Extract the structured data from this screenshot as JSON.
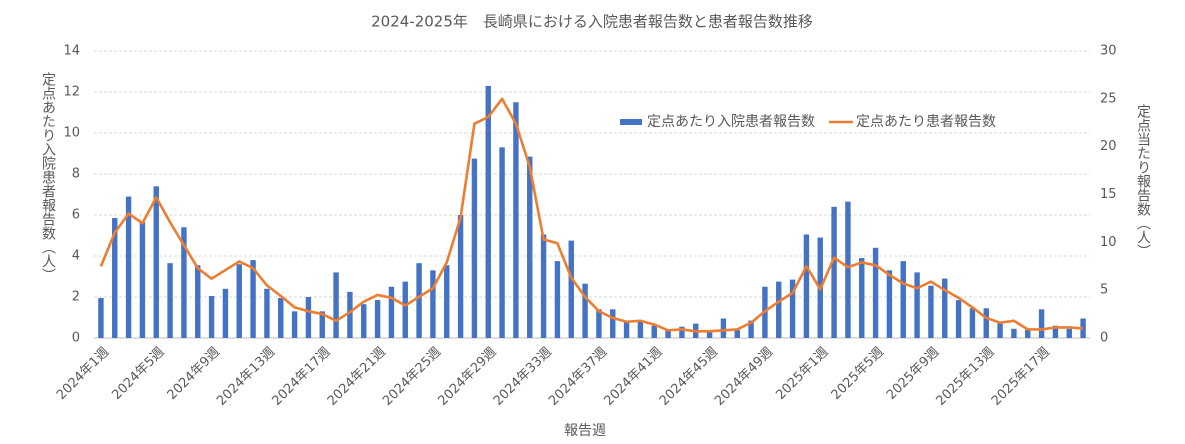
{
  "chart_data": {
    "type": "bar-line",
    "title": "2024-2025年　長崎県における入院患者報告数と患者報告数推移",
    "x_label": "報告週",
    "y_label": "定点あたり入院患者報告数（人）",
    "y2_label": "定点当たり報告数（人）",
    "categories": [
      "2024年1週",
      null,
      null,
      null,
      "2024年5週",
      null,
      null,
      null,
      "2024年9週",
      null,
      null,
      null,
      "2024年13週",
      null,
      null,
      null,
      "2024年17週",
      null,
      null,
      null,
      "2024年21週",
      null,
      null,
      null,
      "2024年25週",
      null,
      null,
      null,
      "2024年29週",
      null,
      null,
      null,
      "2024年33週",
      null,
      null,
      null,
      "2024年37週",
      null,
      null,
      null,
      "2024年41週",
      null,
      null,
      null,
      "2024年45週",
      null,
      null,
      null,
      "2024年49週",
      null,
      null,
      null,
      "2025年1週",
      null,
      null,
      null,
      "2025年5週",
      null,
      null,
      null,
      "2025年9週",
      null,
      null,
      null,
      "2025年13週",
      null,
      null,
      null,
      "2025年17週",
      null,
      null,
      null
    ],
    "series": [
      {
        "name": "定点あたり入院患者報告数",
        "color": "#4472c4",
        "axis": "y",
        "values": [
          1.95,
          5.85,
          6.9,
          5.65,
          7.4,
          3.65,
          5.4,
          3.55,
          2.05,
          2.4,
          3.6,
          3.8,
          2.4,
          1.95,
          1.3,
          2.0,
          1.3,
          3.2,
          2.25,
          1.65,
          1.85,
          2.5,
          2.75,
          3.65,
          3.3,
          3.55,
          6.0,
          8.75,
          12.3,
          9.3,
          11.5,
          8.85,
          5.05,
          3.75,
          4.75,
          2.65,
          1.4,
          1.4,
          0.8,
          0.85,
          0.6,
          0.4,
          0.55,
          0.7,
          0.35,
          0.95,
          0.4,
          0.85,
          2.5,
          2.75,
          2.85,
          5.05,
          4.9,
          6.4,
          6.65,
          3.9,
          4.4,
          3.3,
          3.75,
          3.2,
          2.55,
          2.9,
          1.85,
          1.45,
          1.45,
          0.75,
          0.45,
          0.4,
          1.4,
          0.6,
          0.45,
          0.95
        ]
      },
      {
        "name": "定点あたり患者報告数",
        "color": "#ed7d31",
        "axis": "y2",
        "values": [
          7.5,
          11,
          13,
          12,
          14.7,
          12.1,
          9.7,
          7.3,
          6.2,
          7.1,
          8.0,
          7.3,
          5.5,
          4.4,
          3.2,
          2.8,
          2.5,
          1.8,
          2.7,
          3.8,
          4.5,
          4.2,
          3.4,
          4.3,
          5.2,
          7.9,
          12.6,
          22.4,
          23.1,
          25.0,
          22.4,
          17.9,
          10.3,
          9.9,
          6.3,
          4.3,
          2.8,
          2.1,
          1.7,
          1.8,
          1.4,
          0.8,
          0.9,
          0.7,
          0.7,
          0.8,
          0.9,
          1.6,
          2.8,
          3.8,
          4.7,
          7.5,
          5.1,
          8.4,
          7.4,
          7.9,
          7.6,
          6.6,
          5.7,
          5.2,
          5.9,
          5.0,
          4.2,
          3.2,
          2.1,
          1.6,
          1.8,
          0.9,
          0.9,
          1.1,
          1.1,
          1.0
        ]
      }
    ],
    "ylim": [
      0,
      14
    ],
    "yticks": [
      0,
      2,
      4,
      6,
      8,
      10,
      12,
      14
    ],
    "y2lim": [
      0,
      30
    ],
    "y2ticks": [
      0,
      5,
      10,
      15,
      20,
      25,
      30
    ],
    "grid": true,
    "legend": "upper right"
  }
}
